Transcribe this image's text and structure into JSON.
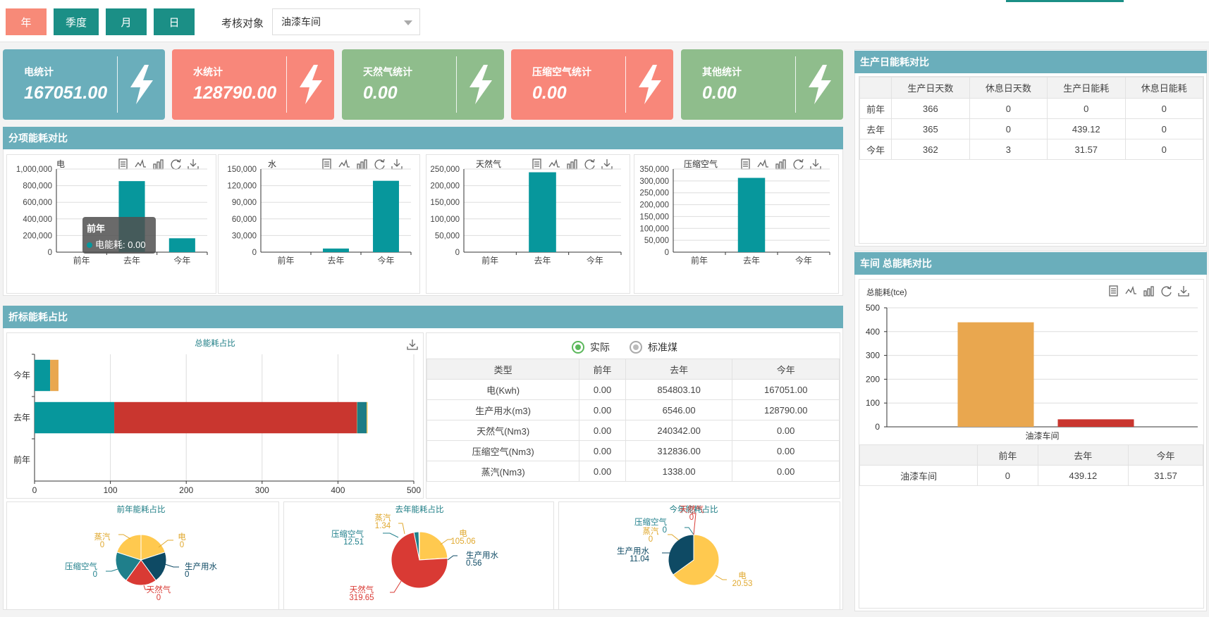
{
  "colors": {
    "teal": "#1b8f86",
    "salmon": "#f78a78",
    "cardBlue": "#6aaebb",
    "cardSalmon": "#f8877a",
    "cardGreen": "#8fbd8c",
    "barTeal": "#07979c",
    "barOrange": "#e9a74f",
    "barRed": "#c9362f"
  },
  "top": {
    "periods": [
      {
        "label": "年"
      },
      {
        "label": "季度"
      },
      {
        "label": "月"
      },
      {
        "label": "日"
      }
    ],
    "filter_label": "考核对象",
    "filter_value": "油漆车间"
  },
  "cards": [
    {
      "label": "电统计",
      "value": "167051.00",
      "icon": "lightning-icon"
    },
    {
      "label": "水统计",
      "value": "128790.00",
      "icon": "lightning-icon"
    },
    {
      "label": "天然气统计",
      "value": "0.00",
      "icon": "lightning-icon"
    },
    {
      "label": "压缩空气统计",
      "value": "0.00",
      "icon": "lightning-icon"
    },
    {
      "label": "其他统计",
      "value": "0.00",
      "icon": "lightning-icon"
    }
  ],
  "sections": {
    "subitem": "分项能耗对比",
    "conversion": "折标能耗占比",
    "production": "生产日能耗对比",
    "workshop": "车间 总能耗对比"
  },
  "toolbar_icons": [
    "data-view-icon",
    "line-chart-icon",
    "bar-chart-icon",
    "refresh-icon",
    "download-icon"
  ],
  "chart_data": [
    {
      "type": "bar",
      "title": "电",
      "categories": [
        "前年",
        "去年",
        "今年"
      ],
      "values": [
        0,
        854803.1,
        167051.0
      ],
      "ylim": [
        0,
        1000000
      ],
      "yticks": [
        "1,000,000",
        "800,000",
        "600,000",
        "400,000",
        "200,000",
        "0"
      ],
      "tooltip": {
        "title": "前年",
        "series": "电能耗",
        "value": "0.00"
      }
    },
    {
      "type": "bar",
      "title": "水",
      "categories": [
        "前年",
        "去年",
        "今年"
      ],
      "values": [
        0,
        6546.0,
        128790.0
      ],
      "ylim": [
        0,
        150000
      ],
      "yticks": [
        "150,000",
        "120,000",
        "90,000",
        "60,000",
        "30,000",
        "0"
      ]
    },
    {
      "type": "bar",
      "title": "天然气",
      "categories": [
        "前年",
        "去年",
        "今年"
      ],
      "values": [
        0,
        240342.0,
        0
      ],
      "ylim": [
        0,
        250000
      ],
      "yticks": [
        "250,000",
        "200,000",
        "150,000",
        "100,000",
        "50,000",
        "0"
      ]
    },
    {
      "type": "bar",
      "title": "压缩空气",
      "categories": [
        "前年",
        "去年",
        "今年"
      ],
      "values": [
        0,
        312836.0,
        0
      ],
      "ylim": [
        0,
        350000
      ],
      "yticks": [
        "350,000",
        "300,000",
        "250,000",
        "200,000",
        "150,000",
        "100,000",
        "50,000",
        "0"
      ]
    },
    {
      "type": "bar",
      "title": "总能耗占比",
      "orientation": "horizontal",
      "stacked": true,
      "categories": [
        "今年",
        "去年",
        "前年"
      ],
      "series": [
        {
          "color": "#07979c",
          "values": [
            20.53,
            105.06,
            0
          ]
        },
        {
          "color": "#c9362f",
          "values": [
            0,
            319.65,
            0
          ]
        },
        {
          "color": "#e9a74f",
          "values": [
            11.04,
            0.56,
            0
          ]
        },
        {
          "color": "#1d7d85",
          "values": [
            0,
            12.51,
            0
          ]
        },
        {
          "color": "#f0c45a",
          "values": [
            0,
            1.34,
            0
          ]
        }
      ],
      "xlim": [
        0,
        500
      ],
      "xticks": [
        "0",
        "100",
        "200",
        "300",
        "400",
        "500"
      ]
    },
    {
      "type": "pie",
      "title": "前年能耗占比",
      "slices": [
        {
          "name": "电",
          "value": "0",
          "color": "#ffc94f"
        },
        {
          "name": "生产用水",
          "value": "0",
          "color": "#0e4a64"
        },
        {
          "name": "天然气",
          "value": "0",
          "color": "#d93a34"
        },
        {
          "name": "压缩空气",
          "value": "0",
          "color": "#1f7f8b"
        },
        {
          "name": "蒸汽",
          "value": "0",
          "color": "#ffc94f"
        }
      ]
    },
    {
      "type": "pie",
      "title": "去年能耗占比",
      "slices": [
        {
          "name": "电",
          "value": "105.06",
          "color": "#ffc94f"
        },
        {
          "name": "生产用水",
          "value": "0.56",
          "color": "#0e4a64"
        },
        {
          "name": "天然气",
          "value": "319.65",
          "color": "#d93a34"
        },
        {
          "name": "压缩空气",
          "value": "12.51",
          "color": "#1f7f8b"
        },
        {
          "name": "蒸汽",
          "value": "1.34",
          "color": "#ffc94f"
        }
      ]
    },
    {
      "type": "pie",
      "title": "今年能耗占比",
      "slices": [
        {
          "name": "电",
          "value": "20.53",
          "color": "#ffc94f"
        },
        {
          "name": "生产用水",
          "value": "11.04",
          "color": "#0e4a64"
        },
        {
          "name": "压缩空气",
          "value": "0",
          "color": "#1f7f8b"
        },
        {
          "name": "蒸汽",
          "value": "0",
          "color": "#ffc94f"
        },
        {
          "name": "天然气",
          "value": "0",
          "color": "#d93a34"
        }
      ]
    },
    {
      "type": "bar",
      "ylabel": "总能耗(tce)",
      "categories": [
        "油漆车间"
      ],
      "series": [
        {
          "color": "#e9a74f",
          "values": [
            439.12
          ]
        },
        {
          "color": "#c9362f",
          "values": [
            31.57
          ]
        }
      ],
      "ylim": [
        0,
        500
      ],
      "yticks": [
        "500",
        "400",
        "300",
        "200",
        "100",
        "0"
      ]
    }
  ],
  "radio": {
    "actual": "实际",
    "standard": "标准煤"
  },
  "energy_table": {
    "headers": [
      "类型",
      "前年",
      "去年",
      "今年"
    ],
    "rows": [
      [
        "电(Kwh)",
        "0.00",
        "854803.10",
        "167051.00"
      ],
      [
        "生产用水(m3)",
        "0.00",
        "6546.00",
        "128790.00"
      ],
      [
        "天然气(Nm3)",
        "0.00",
        "240342.00",
        "0.00"
      ],
      [
        "压缩空气(Nm3)",
        "0.00",
        "312836.00",
        "0.00"
      ],
      [
        "蒸汽(Nm3)",
        "0.00",
        "1338.00",
        "0.00"
      ]
    ]
  },
  "production_table": {
    "headers": [
      "",
      "生产日天数",
      "休息日天数",
      "生产日能耗",
      "休息日能耗"
    ],
    "rows": [
      [
        "前年",
        "366",
        "0",
        "0",
        "0"
      ],
      [
        "去年",
        "365",
        "0",
        "439.12",
        "0"
      ],
      [
        "今年",
        "362",
        "3",
        "31.57",
        "0"
      ]
    ]
  },
  "workshop_table": {
    "headers": [
      "",
      "前年",
      "去年",
      "今年"
    ],
    "rows": [
      [
        "油漆车间",
        "0",
        "439.12",
        "31.57"
      ]
    ]
  }
}
